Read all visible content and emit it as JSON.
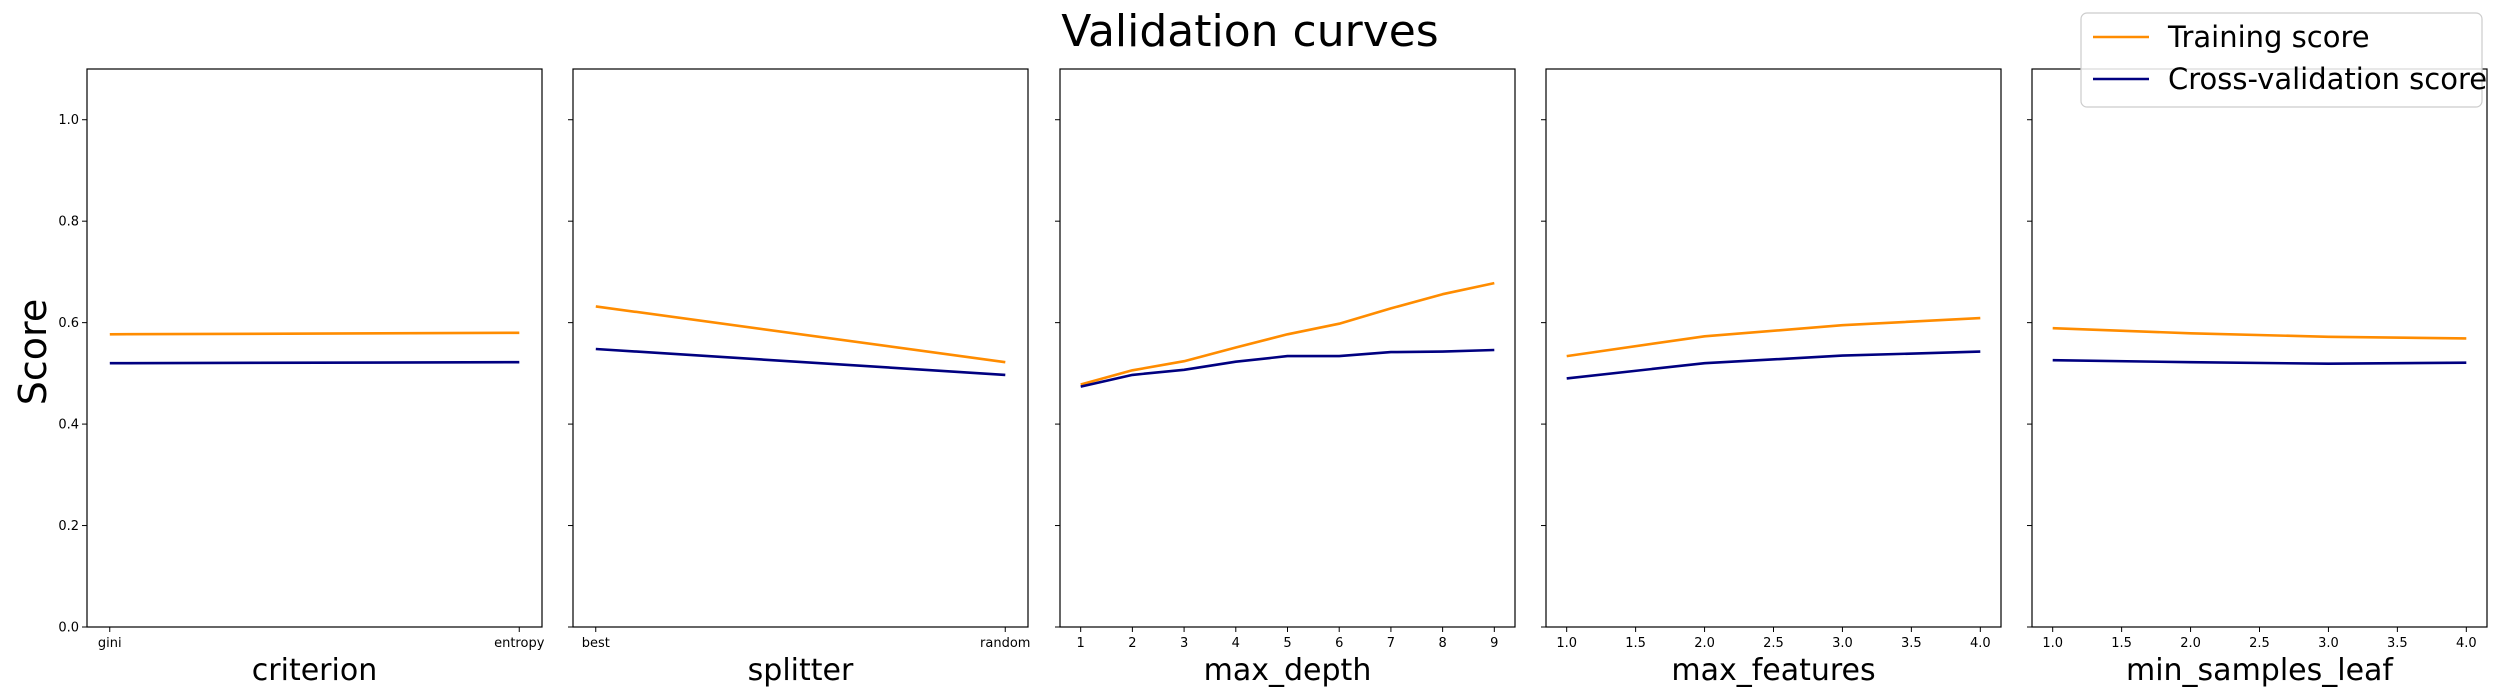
{
  "figure": {
    "title": "Validation curves",
    "ylabel": "Score",
    "legend": {
      "placement": "top-right",
      "entries": [
        "Training score",
        "Cross-validation score"
      ]
    },
    "colors": {
      "training": "#ff8c00",
      "cv": "#000080",
      "axes": "#000000"
    }
  },
  "chart_data": [
    {
      "type": "line",
      "xlabel": "criterion",
      "xtype": "categorical",
      "categories": [
        "gini",
        "entropy"
      ],
      "ylim": [
        0,
        1.1
      ],
      "yticks": [
        "0.0",
        "0.2",
        "0.4",
        "0.6",
        "0.8",
        "1.0"
      ],
      "series": [
        {
          "name": "Training score",
          "values": [
            0.577,
            0.58
          ]
        },
        {
          "name": "Cross-validation score",
          "values": [
            0.52,
            0.522
          ]
        }
      ]
    },
    {
      "type": "line",
      "xlabel": "splitter",
      "xtype": "categorical",
      "categories": [
        "best",
        "random"
      ],
      "ylim": [
        0,
        1.1
      ],
      "series": [
        {
          "name": "Training score",
          "values": [
            0.632,
            0.522
          ]
        },
        {
          "name": "Cross-validation score",
          "values": [
            0.548,
            0.497
          ]
        }
      ]
    },
    {
      "type": "line",
      "xlabel": "max_depth",
      "xtype": "numeric",
      "x": [
        1,
        2,
        3,
        4,
        5,
        6,
        7,
        8,
        9
      ],
      "xlim": [
        0.6,
        9.4
      ],
      "xticks": [
        "1",
        "2",
        "3",
        "4",
        "5",
        "6",
        "7",
        "8",
        "9"
      ],
      "ylim": [
        0,
        1.1
      ],
      "series": [
        {
          "name": "Training score",
          "values": [
            0.478,
            0.506,
            0.524,
            0.551,
            0.577,
            0.598,
            0.628,
            0.656,
            0.678
          ]
        },
        {
          "name": "Cross-validation score",
          "values": [
            0.474,
            0.497,
            0.507,
            0.523,
            0.534,
            0.534,
            0.542,
            0.543,
            0.546
          ]
        }
      ]
    },
    {
      "type": "line",
      "xlabel": "max_features",
      "xtype": "numeric",
      "x": [
        1.0,
        2.0,
        3.0,
        4.0
      ],
      "xlim": [
        0.85,
        4.15
      ],
      "xticks": [
        "1.0",
        "1.5",
        "2.0",
        "2.5",
        "3.0",
        "3.5",
        "4.0"
      ],
      "ylim": [
        0,
        1.1
      ],
      "series": [
        {
          "name": "Training score",
          "values": [
            0.534,
            0.573,
            0.595,
            0.609
          ]
        },
        {
          "name": "Cross-validation score",
          "values": [
            0.49,
            0.52,
            0.535,
            0.543
          ]
        }
      ]
    },
    {
      "type": "line",
      "xlabel": "min_samples_leaf",
      "xtype": "numeric",
      "x": [
        1.0,
        2.0,
        3.0,
        4.0
      ],
      "xlim": [
        0.85,
        4.15
      ],
      "xticks": [
        "1.0",
        "1.5",
        "2.0",
        "2.5",
        "3.0",
        "3.5",
        "4.0"
      ],
      "ylim": [
        0,
        1.1
      ],
      "series": [
        {
          "name": "Training score",
          "values": [
            0.589,
            0.579,
            0.572,
            0.569
          ]
        },
        {
          "name": "Cross-validation score",
          "values": [
            0.526,
            0.522,
            0.519,
            0.521
          ]
        }
      ]
    }
  ]
}
